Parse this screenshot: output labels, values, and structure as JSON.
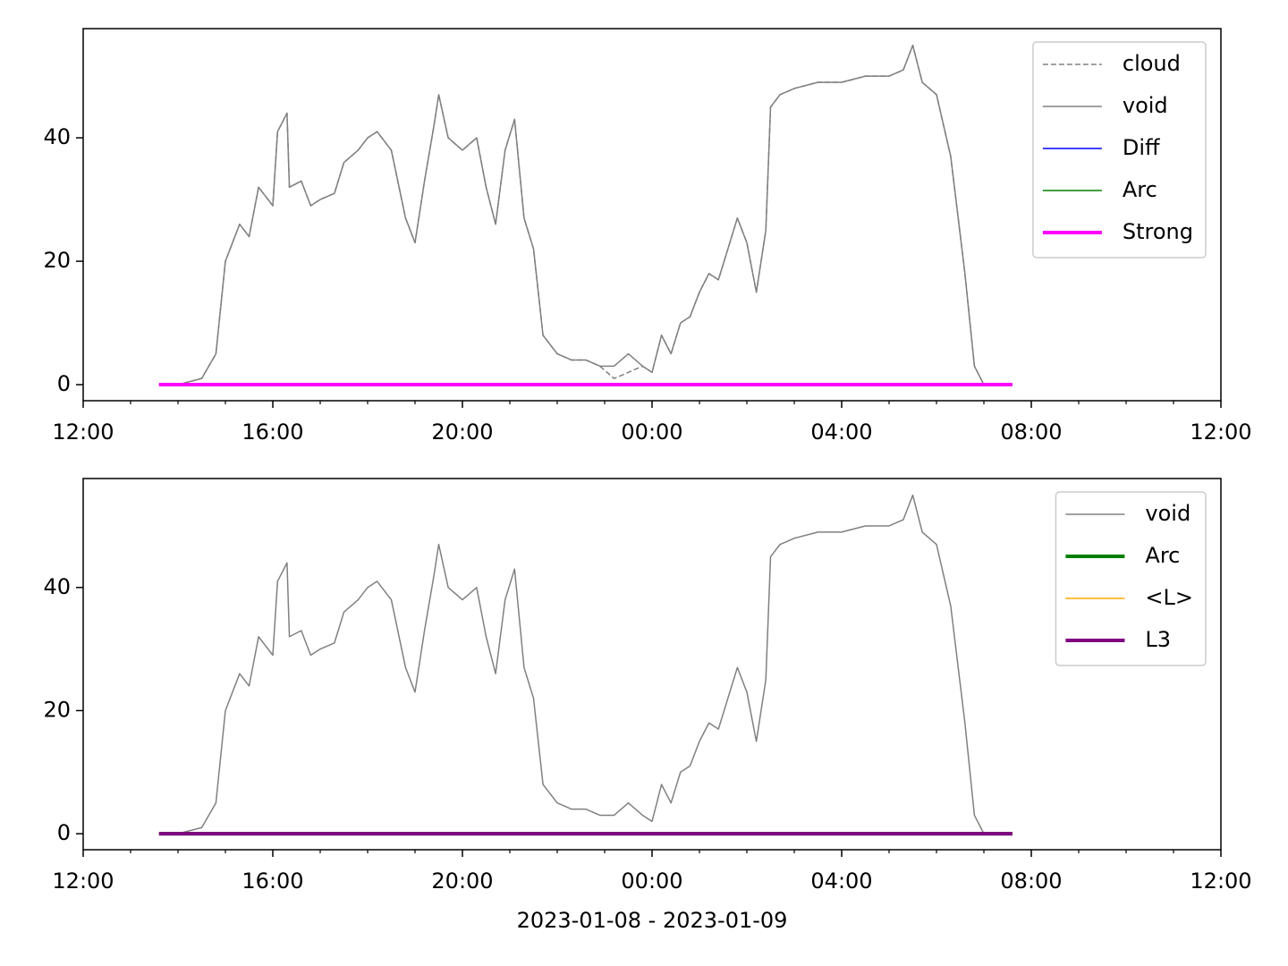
{
  "chart_data": [
    {
      "type": "line",
      "xlim": [
        12,
        36
      ],
      "xticks": [
        {
          "value": 12,
          "label": "12:00"
        },
        {
          "value": 16,
          "label": "16:00"
        },
        {
          "value": 20,
          "label": "20:00"
        },
        {
          "value": 24,
          "label": "00:00"
        },
        {
          "value": 28,
          "label": "04:00"
        },
        {
          "value": 32,
          "label": "08:00"
        },
        {
          "value": 36,
          "label": "12:00"
        }
      ],
      "xminorticks": [
        13,
        14,
        15,
        17,
        18,
        19,
        21,
        22,
        23,
        25,
        26,
        27,
        29,
        30,
        31,
        33,
        34,
        35
      ],
      "ylim": [
        -2.6,
        57.7
      ],
      "yticks": [
        0,
        20,
        40
      ],
      "legend": "upper right",
      "series": [
        {
          "name": "cloud",
          "color": "#808080",
          "linestyle": "dashed",
          "linewidth": 1.5,
          "x": [
            13.6,
            14,
            14.5,
            14.8,
            15,
            15.3,
            15.5,
            15.7,
            15.9,
            16,
            16.1,
            16.3,
            16.35,
            16.6,
            16.8,
            17,
            17.3,
            17.5,
            17.8,
            18,
            18.2,
            18.5,
            18.8,
            19,
            19.2,
            19.4,
            19.5,
            19.7,
            20,
            20.3,
            20.5,
            20.7,
            20.9,
            21.1,
            21.3,
            21.5,
            21.7,
            22,
            22.3,
            22.6,
            22.9,
            23.2,
            23.5,
            23.8,
            24,
            24.2,
            24.4,
            24.6,
            24.8,
            25,
            25.2,
            25.4,
            25.6,
            25.8,
            26,
            26.2,
            26.4,
            26.5,
            26.7,
            27,
            27.5,
            28,
            28.5,
            29,
            29.3,
            29.5,
            29.7,
            30,
            30.3,
            30.6,
            30.8,
            31,
            31.6
          ],
          "values": [
            0,
            0,
            1,
            5,
            20,
            26,
            24,
            32,
            30,
            29,
            41,
            44,
            32,
            33,
            29,
            30,
            31,
            36,
            38,
            40,
            41,
            38,
            27,
            23,
            33,
            42,
            47,
            40,
            38,
            40,
            32,
            26,
            38,
            43,
            27,
            22,
            8,
            5,
            4,
            4,
            3,
            1,
            2,
            3,
            2,
            8,
            5,
            10,
            11,
            15,
            18,
            17,
            22,
            27,
            23,
            15,
            25,
            45,
            47,
            48,
            49,
            49,
            50,
            50,
            51,
            55,
            49,
            47,
            37,
            18,
            3,
            0,
            0
          ]
        },
        {
          "name": "void",
          "color": "#808080",
          "linestyle": "solid",
          "linewidth": 1.5,
          "x": [
            13.6,
            14,
            14.5,
            14.8,
            15,
            15.3,
            15.5,
            15.7,
            15.9,
            16,
            16.1,
            16.3,
            16.35,
            16.6,
            16.8,
            17,
            17.3,
            17.5,
            17.8,
            18,
            18.2,
            18.5,
            18.8,
            19,
            19.2,
            19.4,
            19.5,
            19.7,
            20,
            20.3,
            20.5,
            20.7,
            20.9,
            21.1,
            21.3,
            21.5,
            21.7,
            22,
            22.3,
            22.6,
            22.9,
            23.2,
            23.5,
            23.8,
            24,
            24.2,
            24.4,
            24.6,
            24.8,
            25,
            25.2,
            25.4,
            25.6,
            25.8,
            26,
            26.2,
            26.4,
            26.5,
            26.7,
            27,
            27.5,
            28,
            28.5,
            29,
            29.3,
            29.5,
            29.7,
            30,
            30.3,
            30.6,
            30.8,
            31,
            31.6
          ],
          "values": [
            0,
            0,
            1,
            5,
            20,
            26,
            24,
            32,
            30,
            29,
            41,
            44,
            32,
            33,
            29,
            30,
            31,
            36,
            38,
            40,
            41,
            38,
            27,
            23,
            33,
            42,
            47,
            40,
            38,
            40,
            32,
            26,
            38,
            43,
            27,
            22,
            8,
            5,
            4,
            4,
            3,
            3,
            5,
            3,
            2,
            8,
            5,
            10,
            11,
            15,
            18,
            17,
            22,
            27,
            23,
            15,
            25,
            45,
            47,
            48,
            49,
            49,
            50,
            50,
            51,
            55,
            49,
            47,
            37,
            18,
            3,
            0,
            0
          ]
        },
        {
          "name": "Diff",
          "color": "#0000ff",
          "linestyle": "solid",
          "linewidth": 1.5,
          "x": [
            13.6,
            31.6
          ],
          "values": [
            0,
            0
          ]
        },
        {
          "name": "Arc",
          "color": "#008000",
          "linestyle": "solid",
          "linewidth": 1.5,
          "x": [
            13.6,
            31.6
          ],
          "values": [
            0,
            0
          ]
        },
        {
          "name": "Strong",
          "color": "#ff00ff",
          "linestyle": "solid",
          "linewidth": 4,
          "x": [
            13.6,
            31.6
          ],
          "values": [
            0,
            0
          ]
        }
      ]
    },
    {
      "type": "line",
      "xlabel": "2023-01-08 - 2023-01-09",
      "xlim": [
        12,
        36
      ],
      "xticks": [
        {
          "value": 12,
          "label": "12:00"
        },
        {
          "value": 16,
          "label": "16:00"
        },
        {
          "value": 20,
          "label": "20:00"
        },
        {
          "value": 24,
          "label": "00:00"
        },
        {
          "value": 28,
          "label": "04:00"
        },
        {
          "value": 32,
          "label": "08:00"
        },
        {
          "value": 36,
          "label": "12:00"
        }
      ],
      "xminorticks": [
        13,
        14,
        15,
        17,
        18,
        19,
        21,
        22,
        23,
        25,
        26,
        27,
        29,
        30,
        31,
        33,
        34,
        35
      ],
      "ylim": [
        -2.6,
        57.7
      ],
      "yticks": [
        0,
        20,
        40
      ],
      "legend": "upper right",
      "series": [
        {
          "name": "void",
          "color": "#808080",
          "linestyle": "solid",
          "linewidth": 1.5,
          "x": [
            13.6,
            14,
            14.5,
            14.8,
            15,
            15.3,
            15.5,
            15.7,
            15.9,
            16,
            16.1,
            16.3,
            16.35,
            16.6,
            16.8,
            17,
            17.3,
            17.5,
            17.8,
            18,
            18.2,
            18.5,
            18.8,
            19,
            19.2,
            19.4,
            19.5,
            19.7,
            20,
            20.3,
            20.5,
            20.7,
            20.9,
            21.1,
            21.3,
            21.5,
            21.7,
            22,
            22.3,
            22.6,
            22.9,
            23.2,
            23.5,
            23.8,
            24,
            24.2,
            24.4,
            24.6,
            24.8,
            25,
            25.2,
            25.4,
            25.6,
            25.8,
            26,
            26.2,
            26.4,
            26.5,
            26.7,
            27,
            27.5,
            28,
            28.5,
            29,
            29.3,
            29.5,
            29.7,
            30,
            30.3,
            30.6,
            30.8,
            31,
            31.6
          ],
          "values": [
            0,
            0,
            1,
            5,
            20,
            26,
            24,
            32,
            30,
            29,
            41,
            44,
            32,
            33,
            29,
            30,
            31,
            36,
            38,
            40,
            41,
            38,
            27,
            23,
            33,
            42,
            47,
            40,
            38,
            40,
            32,
            26,
            38,
            43,
            27,
            22,
            8,
            5,
            4,
            4,
            3,
            3,
            5,
            3,
            2,
            8,
            5,
            10,
            11,
            15,
            18,
            17,
            22,
            27,
            23,
            15,
            25,
            45,
            47,
            48,
            49,
            49,
            50,
            50,
            51,
            55,
            49,
            47,
            37,
            18,
            3,
            0,
            0
          ]
        },
        {
          "name": "Arc",
          "color": "#008000",
          "linestyle": "solid",
          "linewidth": 4,
          "x": [
            13.6,
            31.6
          ],
          "values": [
            0,
            0
          ]
        },
        {
          "name": "<L>",
          "color": "#ffa500",
          "linestyle": "solid",
          "linewidth": 1.5,
          "x": [
            13.6,
            31.6
          ],
          "values": [
            0,
            0
          ]
        },
        {
          "name": "L3",
          "color": "#800080",
          "linestyle": "solid",
          "linewidth": 4,
          "x": [
            13.6,
            31.6
          ],
          "values": [
            0,
            0
          ]
        }
      ]
    }
  ]
}
